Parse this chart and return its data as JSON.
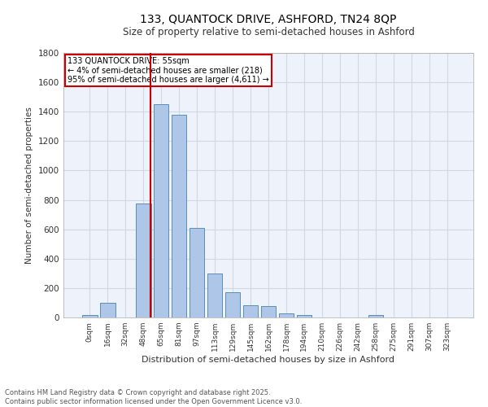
{
  "title": "133, QUANTOCK DRIVE, ASHFORD, TN24 8QP",
  "subtitle": "Size of property relative to semi-detached houses in Ashford",
  "xlabel": "Distribution of semi-detached houses by size in Ashford",
  "ylabel": "Number of semi-detached properties",
  "footer_line1": "Contains HM Land Registry data © Crown copyright and database right 2025.",
  "footer_line2": "Contains public sector information licensed under the Open Government Licence v3.0.",
  "bar_labels": [
    "0sqm",
    "16sqm",
    "32sqm",
    "48sqm",
    "65sqm",
    "81sqm",
    "97sqm",
    "113sqm",
    "129sqm",
    "145sqm",
    "162sqm",
    "178sqm",
    "194sqm",
    "210sqm",
    "226sqm",
    "242sqm",
    "258sqm",
    "275sqm",
    "291sqm",
    "307sqm",
    "323sqm"
  ],
  "bar_values": [
    15,
    100,
    0,
    775,
    1450,
    1380,
    610,
    300,
    170,
    85,
    80,
    30,
    18,
    0,
    0,
    0,
    15,
    0,
    0,
    0,
    0
  ],
  "bar_color": "#aec6e8",
  "bar_edge_color": "#5b8db8",
  "grid_color": "#d0d8e8",
  "bg_color": "#eef2fa",
  "vline_color": "#cc0000",
  "annotation_title": "133 QUANTOCK DRIVE: 55sqm",
  "annotation_line2": "← 4% of semi-detached houses are smaller (218)",
  "annotation_line3": "95% of semi-detached houses are larger (4,611) →",
  "annotation_box_color": "#cc0000",
  "ylim": [
    0,
    1800
  ],
  "yticks": [
    0,
    200,
    400,
    600,
    800,
    1000,
    1200,
    1400,
    1600,
    1800
  ]
}
